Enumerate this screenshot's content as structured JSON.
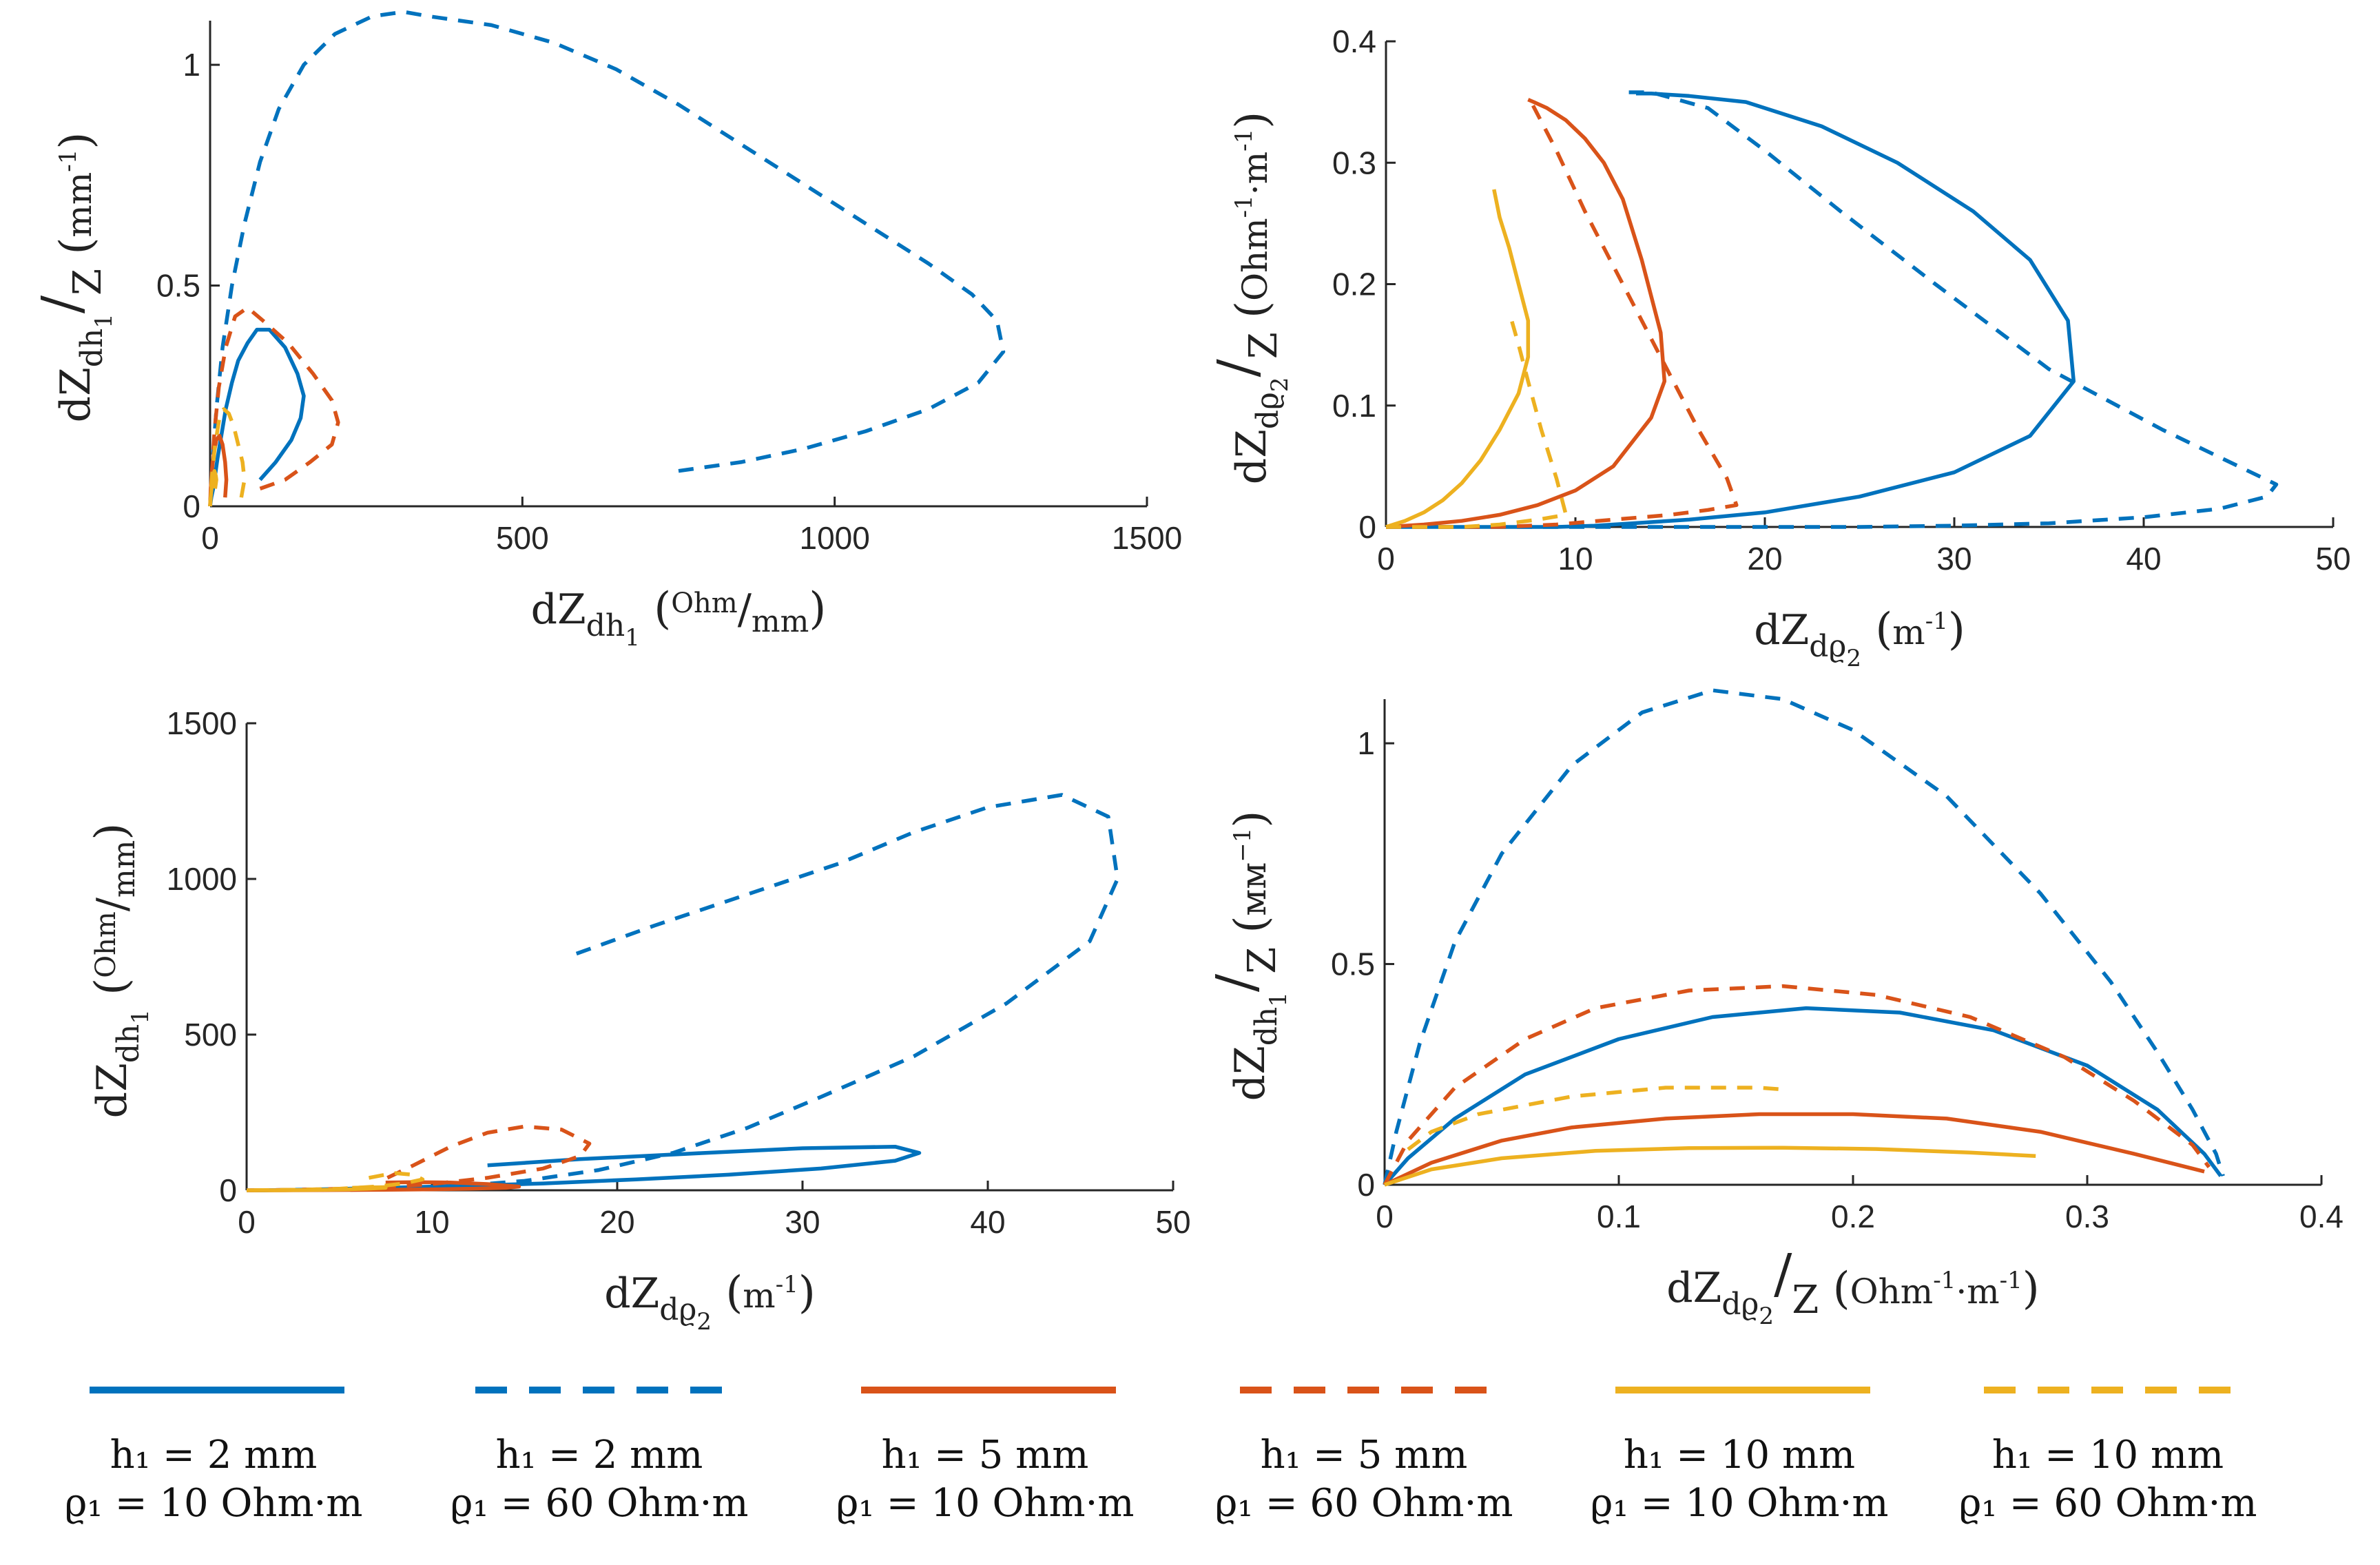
{
  "colors": {
    "blue": "#0072BD",
    "orange": "#D95319",
    "yellow": "#EDB120",
    "axis": "#262626"
  },
  "legend": [
    {
      "color": "blue",
      "dash": false,
      "line1": "h₁ = 2 mm",
      "line2": "ϱ₁ = 10 Ohm·m"
    },
    {
      "color": "blue",
      "dash": true,
      "line1": "h₁ = 2 mm",
      "line2": "ϱ₁ = 60 Ohm·m"
    },
    {
      "color": "orange",
      "dash": false,
      "line1": "h₁ = 5 mm",
      "line2": "ϱ₁ = 10 Ohm·m"
    },
    {
      "color": "orange",
      "dash": true,
      "line1": "h₁ = 5 mm",
      "line2": "ϱ₁ = 60 Ohm·m"
    },
    {
      "color": "yellow",
      "dash": false,
      "line1": "h₁ = 10 mm",
      "line2": "ϱ₁ = 10 Ohm·m"
    },
    {
      "color": "yellow",
      "dash": true,
      "line1": "h₁ = 10 mm",
      "line2": "ϱ₁ = 60 Ohm·m"
    }
  ],
  "chart_data": [
    {
      "type": "line",
      "xlim": [
        0,
        1500
      ],
      "ylim": [
        0,
        1.1
      ],
      "xticks": [
        0,
        500,
        1000,
        1500
      ],
      "xtick_labels": [
        "0",
        "500",
        "1000",
        "1500"
      ],
      "yticks": [
        0,
        0.5,
        1
      ],
      "ytick_labels": [
        "0",
        "0.5",
        "1"
      ],
      "xlabel": {
        "main": "dZ",
        "sub": "dh",
        "subsub": "1",
        "unit_num": "Ohm",
        "unit_den": "mm"
      },
      "ylabel": {
        "num_main": "dZ",
        "num_sub": "dh",
        "num_subsub": "1",
        "den": "Z",
        "unit": "mm",
        "unit_sup": "-1"
      },
      "series": [
        {
          "style": 0,
          "x": [
            80,
            105,
            130,
            145,
            150,
            140,
            120,
            95,
            75,
            60,
            45,
            35,
            25,
            18,
            12,
            8,
            5,
            2,
            0
          ],
          "y": [
            0.06,
            0.1,
            0.15,
            0.2,
            0.25,
            0.3,
            0.36,
            0.4,
            0.4,
            0.37,
            0.33,
            0.28,
            0.22,
            0.16,
            0.11,
            0.07,
            0.04,
            0.02,
            0
          ]
        },
        {
          "style": 1,
          "x": [
            750,
            850,
            950,
            1050,
            1150,
            1230,
            1270,
            1260,
            1220,
            1150,
            1050,
            950,
            850,
            750,
            650,
            550,
            450,
            350,
            310,
            260,
            200,
            150,
            110,
            80,
            55,
            35,
            20,
            10,
            4,
            0
          ],
          "y": [
            0.08,
            0.1,
            0.13,
            0.17,
            0.22,
            0.28,
            0.35,
            0.42,
            0.48,
            0.55,
            0.64,
            0.73,
            0.82,
            0.91,
            0.99,
            1.05,
            1.09,
            1.11,
            1.12,
            1.11,
            1.07,
            1.0,
            0.9,
            0.78,
            0.64,
            0.5,
            0.36,
            0.22,
            0.1,
            0
          ]
        },
        {
          "style": 2,
          "x": [
            24,
            26,
            24,
            20,
            15,
            10,
            6,
            3,
            1,
            0
          ],
          "y": [
            0.02,
            0.06,
            0.1,
            0.14,
            0.16,
            0.15,
            0.12,
            0.08,
            0.04,
            0
          ]
        },
        {
          "style": 3,
          "x": [
            80,
            120,
            160,
            195,
            205,
            195,
            165,
            125,
            85,
            60,
            40,
            25,
            14,
            7,
            3,
            0
          ],
          "y": [
            0.04,
            0.06,
            0.1,
            0.14,
            0.19,
            0.24,
            0.3,
            0.37,
            0.42,
            0.45,
            0.43,
            0.36,
            0.27,
            0.17,
            0.08,
            0
          ]
        },
        {
          "style": 4,
          "x": [
            8,
            10,
            9,
            7,
            5,
            3,
            1,
            0
          ],
          "y": [
            0.04,
            0.06,
            0.07,
            0.08,
            0.07,
            0.05,
            0.02,
            0
          ]
        },
        {
          "style": 5,
          "x": [
            50,
            55,
            52,
            45,
            38,
            30,
            22,
            15,
            8,
            3,
            0
          ],
          "y": [
            0.02,
            0.06,
            0.1,
            0.14,
            0.18,
            0.21,
            0.22,
            0.2,
            0.14,
            0.07,
            0
          ]
        }
      ]
    },
    {
      "type": "line",
      "xlim": [
        0,
        50
      ],
      "ylim": [
        0,
        0.4
      ],
      "xticks": [
        0,
        10,
        20,
        30,
        40,
        50
      ],
      "xtick_labels": [
        "0",
        "10",
        "20",
        "30",
        "40",
        "50"
      ],
      "yticks": [
        0,
        0.1,
        0.2,
        0.3,
        0.4
      ],
      "ytick_labels": [
        "0",
        "0.1",
        "0.2",
        "0.3",
        "0.4"
      ],
      "xlabel": {
        "main": "dZ",
        "sub": "dϱ",
        "subsub": "2",
        "unit": "m",
        "unit_sup": "-1"
      },
      "ylabel": {
        "num_main": "dZ",
        "num_sub": "dϱ",
        "num_subsub": "2",
        "den": "Z",
        "unit": "Ohm",
        "unit_sup": "-1",
        "unit2": "·m",
        "unit2_sup": "-1"
      },
      "series": [
        {
          "style": 0,
          "x": [
            0,
            1,
            3,
            5,
            7,
            9,
            11,
            13,
            16,
            20,
            25,
            30,
            34,
            36.3,
            36,
            34,
            31,
            27,
            23,
            19,
            16,
            14,
            13.2
          ],
          "y": [
            0,
            0.0,
            0.0,
            0.0,
            0.0,
            0.0,
            0.001,
            0.003,
            0.006,
            0.012,
            0.025,
            0.045,
            0.075,
            0.12,
            0.17,
            0.22,
            0.26,
            0.3,
            0.33,
            0.35,
            0.355,
            0.357,
            0.357
          ]
        },
        {
          "style": 1,
          "x": [
            0,
            3,
            6,
            9,
            12,
            15,
            20,
            25,
            30,
            35,
            40,
            44,
            46.5,
            47,
            45,
            41,
            35,
            29,
            24,
            20,
            17,
            14,
            12.5
          ],
          "y": [
            0,
            0,
            0,
            0,
            0,
            0,
            0,
            0,
            0.001,
            0.003,
            0.008,
            0.015,
            0.025,
            0.035,
            0.05,
            0.08,
            0.13,
            0.2,
            0.26,
            0.31,
            0.345,
            0.358,
            0.358
          ]
        },
        {
          "style": 2,
          "x": [
            0,
            2,
            4,
            6,
            8,
            10,
            12,
            14,
            14.7,
            14.5,
            13.5,
            12.5,
            11.5,
            10.5,
            9.5,
            8.5,
            7.8,
            7.5
          ],
          "y": [
            0,
            0.002,
            0.005,
            0.01,
            0.018,
            0.03,
            0.05,
            0.09,
            0.12,
            0.16,
            0.22,
            0.27,
            0.3,
            0.32,
            0.335,
            0.345,
            0.35,
            0.352
          ]
        },
        {
          "style": 3,
          "x": [
            0,
            3,
            6,
            9,
            12,
            15,
            17,
            18.5,
            18,
            16.5,
            14.5,
            12.5,
            10.5,
            9,
            8,
            7.6
          ],
          "y": [
            0,
            0.0,
            0.0,
            0.002,
            0.006,
            0.01,
            0.014,
            0.018,
            0.04,
            0.08,
            0.14,
            0.2,
            0.26,
            0.31,
            0.34,
            0.352
          ]
        },
        {
          "style": 4,
          "x": [
            0,
            1,
            2,
            3,
            4,
            5,
            6,
            7,
            7.5,
            7.5,
            7,
            6.5,
            6,
            5.7
          ],
          "y": [
            0,
            0.005,
            0.012,
            0.022,
            0.036,
            0.055,
            0.08,
            0.11,
            0.14,
            0.17,
            0.2,
            0.23,
            0.255,
            0.278
          ]
        },
        {
          "style": 5,
          "x": [
            0,
            2,
            4,
            6,
            8,
            9.5,
            9,
            8.2,
            7.5,
            7,
            6.6
          ],
          "y": [
            0,
            0.0,
            0.0,
            0.002,
            0.006,
            0.01,
            0.04,
            0.08,
            0.12,
            0.15,
            0.172
          ]
        }
      ]
    },
    {
      "type": "line",
      "xlim": [
        0,
        50
      ],
      "ylim": [
        0,
        1500
      ],
      "xticks": [
        0,
        10,
        20,
        30,
        40,
        50
      ],
      "xtick_labels": [
        "0",
        "10",
        "20",
        "30",
        "40",
        "50"
      ],
      "yticks": [
        0,
        500,
        1000,
        1500
      ],
      "ytick_labels": [
        "0",
        "500",
        "1000",
        "1500"
      ],
      "xlabel": {
        "main": "dZ",
        "sub": "dϱ",
        "subsub": "2",
        "unit": "m",
        "unit_sup": "-1"
      },
      "ylabel": {
        "main": "dZ",
        "sub": "dh",
        "subsub": "1",
        "unit_num": "Ohm",
        "unit_den": "mm"
      },
      "series": [
        {
          "style": 0,
          "x": [
            13,
            18,
            24,
            30,
            35,
            36.3,
            35,
            31,
            26,
            21,
            16,
            11,
            7,
            4,
            2,
            1,
            0
          ],
          "y": [
            80,
            100,
            118,
            135,
            140,
            120,
            95,
            70,
            50,
            35,
            22,
            13,
            7,
            3,
            1,
            0,
            0
          ]
        },
        {
          "style": 1,
          "x": [
            17.8,
            22,
            27,
            32,
            36,
            40,
            44,
            46.5,
            47,
            45.5,
            41,
            36,
            31,
            27,
            23,
            19,
            15,
            11,
            7,
            3,
            0
          ],
          "y": [
            760,
            850,
            950,
            1050,
            1150,
            1230,
            1270,
            1200,
            1000,
            800,
            600,
            430,
            300,
            200,
            120,
            65,
            30,
            12,
            4,
            1,
            0
          ]
        },
        {
          "style": 2,
          "x": [
            7.5,
            9,
            11,
            13,
            14.7,
            14,
            12,
            10,
            8,
            6,
            4,
            2,
            0
          ],
          "y": [
            25,
            26,
            25,
            20,
            12,
            8,
            5,
            3,
            2,
            1,
            0.5,
            0,
            0
          ]
        },
        {
          "style": 3,
          "x": [
            7.6,
            9,
            11,
            13,
            15,
            17,
            18.5,
            18,
            16,
            13,
            10,
            7,
            4,
            2,
            0
          ],
          "y": [
            40,
            80,
            140,
            185,
            205,
            195,
            150,
            110,
            70,
            40,
            20,
            8,
            3,
            1,
            0
          ]
        },
        {
          "style": 4,
          "x": [
            5.7,
            6.5,
            7.5,
            7.5,
            6.5,
            5.5,
            4.5,
            3.5,
            2.5,
            1.5,
            0.5,
            0
          ],
          "y": [
            8,
            9,
            10,
            8,
            5,
            3,
            2,
            1,
            0.5,
            0,
            0,
            0
          ]
        },
        {
          "style": 5,
          "x": [
            6.6,
            7.3,
            8,
            9,
            9.5,
            8.5,
            7,
            5,
            3,
            1.5,
            0
          ],
          "y": [
            40,
            48,
            55,
            50,
            35,
            22,
            12,
            5,
            2,
            1,
            0
          ]
        }
      ]
    },
    {
      "type": "line",
      "xlim": [
        0,
        0.4
      ],
      "ylim": [
        0,
        1.1
      ],
      "xticks": [
        0,
        0.1,
        0.2,
        0.3,
        0.4
      ],
      "xtick_labels": [
        "0",
        "0.1",
        "0.2",
        "0.3",
        "0.4"
      ],
      "yticks": [
        0,
        0.5,
        1
      ],
      "ytick_labels": [
        "0",
        "0.5",
        "1"
      ],
      "xlabel": {
        "num_main": "dZ",
        "num_sub": "dϱ",
        "num_subsub": "2",
        "den": "Z",
        "unit": "Ohm",
        "unit_sup": "-1",
        "unit2": "·m",
        "unit2_sup": "-1"
      },
      "ylabel": {
        "num_main": "dZ",
        "num_sub": "dh",
        "num_subsub": "1",
        "den": "Z",
        "unit": "мм",
        "unit_sup": "−1"
      },
      "series": [
        {
          "style": 0,
          "x": [
            0,
            0.01,
            0.03,
            0.06,
            0.1,
            0.14,
            0.18,
            0.22,
            0.26,
            0.3,
            0.33,
            0.35,
            0.357
          ],
          "y": [
            0,
            0.06,
            0.15,
            0.25,
            0.33,
            0.38,
            0.4,
            0.39,
            0.35,
            0.27,
            0.17,
            0.07,
            0.02
          ]
        },
        {
          "style": 1,
          "x": [
            0,
            0.005,
            0.015,
            0.03,
            0.05,
            0.08,
            0.11,
            0.14,
            0.17,
            0.2,
            0.24,
            0.28,
            0.31,
            0.33,
            0.345,
            0.355,
            0.358
          ],
          "y": [
            0,
            0.12,
            0.32,
            0.55,
            0.75,
            0.95,
            1.07,
            1.12,
            1.1,
            1.03,
            0.88,
            0.66,
            0.46,
            0.3,
            0.17,
            0.07,
            0.02
          ]
        },
        {
          "style": 2,
          "x": [
            0,
            0.02,
            0.05,
            0.08,
            0.12,
            0.16,
            0.2,
            0.24,
            0.28,
            0.32,
            0.35
          ],
          "y": [
            0,
            0.05,
            0.1,
            0.13,
            0.15,
            0.16,
            0.16,
            0.15,
            0.12,
            0.07,
            0.03
          ]
        },
        {
          "style": 3,
          "x": [
            0,
            0.01,
            0.03,
            0.06,
            0.09,
            0.13,
            0.17,
            0.21,
            0.25,
            0.29,
            0.32,
            0.345,
            0.352
          ],
          "y": [
            0,
            0.1,
            0.22,
            0.33,
            0.4,
            0.44,
            0.45,
            0.43,
            0.38,
            0.29,
            0.19,
            0.09,
            0.04
          ]
        },
        {
          "style": 4,
          "x": [
            0,
            0.02,
            0.05,
            0.09,
            0.13,
            0.17,
            0.21,
            0.25,
            0.278
          ],
          "y": [
            0,
            0.035,
            0.06,
            0.077,
            0.083,
            0.084,
            0.081,
            0.073,
            0.065
          ]
        },
        {
          "style": 5,
          "x": [
            0.01,
            0.02,
            0.04,
            0.06,
            0.08,
            0.1,
            0.12,
            0.14,
            0.16,
            0.172
          ],
          "y": [
            0.08,
            0.12,
            0.16,
            0.18,
            0.2,
            0.21,
            0.22,
            0.22,
            0.22,
            0.215
          ]
        }
      ]
    }
  ]
}
